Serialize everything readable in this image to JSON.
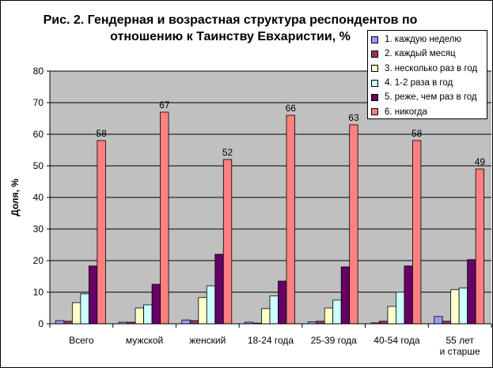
{
  "title_line1": "Рис. 2. Гендерная и возрастная структура респондентов по",
  "title_line2": "отношению к Таинству Евхаристии, %",
  "colors": {
    "plot_bg": "#c0c0c0",
    "series": [
      "#9999ff",
      "#993366",
      "#ffffcc",
      "#ccffff",
      "#660066",
      "#ff8080"
    ]
  },
  "chart_data": {
    "type": "bar",
    "title": "Рис. 2. Гендерная и возрастная структура респондентов по отношению к Таинству Евхаристии, %",
    "xlabel": "",
    "ylabel": "Доля, %",
    "ylim": [
      0,
      80
    ],
    "yticks": [
      0,
      10,
      20,
      30,
      40,
      50,
      60,
      70,
      80
    ],
    "grid": true,
    "legend_position": "top-right",
    "categories": [
      "Всего",
      "мужской",
      "женский",
      "18-24 года",
      "25-39 года",
      "40-54 года",
      "55 лет и старше"
    ],
    "series": [
      {
        "name": "1. каждую неделю",
        "values": [
          1.0,
          0.5,
          1.2,
          0.5,
          0.6,
          0.3,
          2.3
        ]
      },
      {
        "name": "2. каждый месяц",
        "values": [
          0.8,
          0.5,
          1.0,
          0.2,
          0.8,
          0.8,
          0.8
        ]
      },
      {
        "name": "3. несколько раз в год",
        "values": [
          6.7,
          5.0,
          8.3,
          4.8,
          5.0,
          5.5,
          10.8
        ]
      },
      {
        "name": "4. 1-2 раза в год",
        "values": [
          9.5,
          6.0,
          12.0,
          8.8,
          7.5,
          10.0,
          11.3
        ]
      },
      {
        "name": "5. реже, чем раз в год",
        "values": [
          18.3,
          12.5,
          22.0,
          13.5,
          18.0,
          18.3,
          20.3
        ]
      },
      {
        "name": "6. никогда",
        "values": [
          58,
          67,
          52,
          66,
          63,
          58,
          49
        ]
      }
    ],
    "data_labels": {
      "series_index": 5,
      "labels": [
        "58",
        "67",
        "52",
        "66",
        "63",
        "58",
        "49"
      ]
    }
  }
}
